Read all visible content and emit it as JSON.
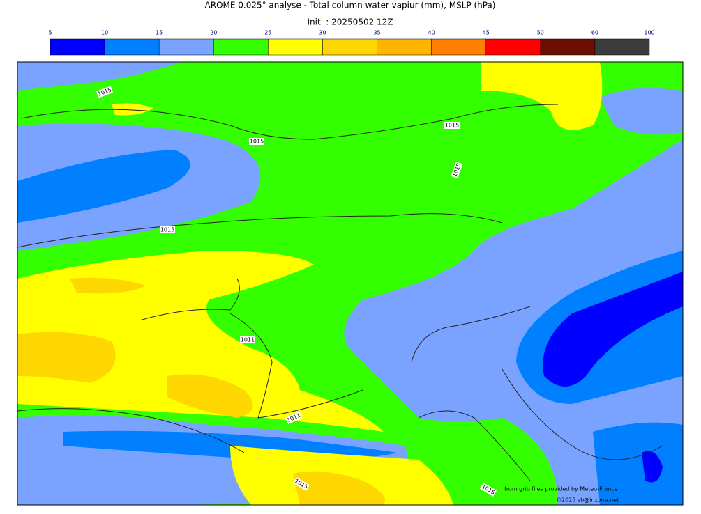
{
  "header": {
    "title": "AROME 0.025° analyse - Total column water vapiur (mm), MSLP (hPa)",
    "init": "Init. : 20250502 12Z"
  },
  "colorbar": {
    "ticks": [
      5,
      10,
      15,
      20,
      25,
      30,
      35,
      40,
      45,
      50,
      60,
      100
    ],
    "colors": [
      "#0000ff",
      "#0080ff",
      "#7aa2ff",
      "#33ff00",
      "#ffff00",
      "#ffd700",
      "#ffb400",
      "#ff8000",
      "#ff0000",
      "#6b0f00",
      "#3c3c3c"
    ]
  },
  "isobar_labels": [
    1015,
    1015,
    1015,
    1015,
    1015,
    1011,
    1011,
    1015,
    1015
  ],
  "credits": [
    "from grib files provided by Meteo-France",
    "©2025 sb@inzone.net"
  ]
}
